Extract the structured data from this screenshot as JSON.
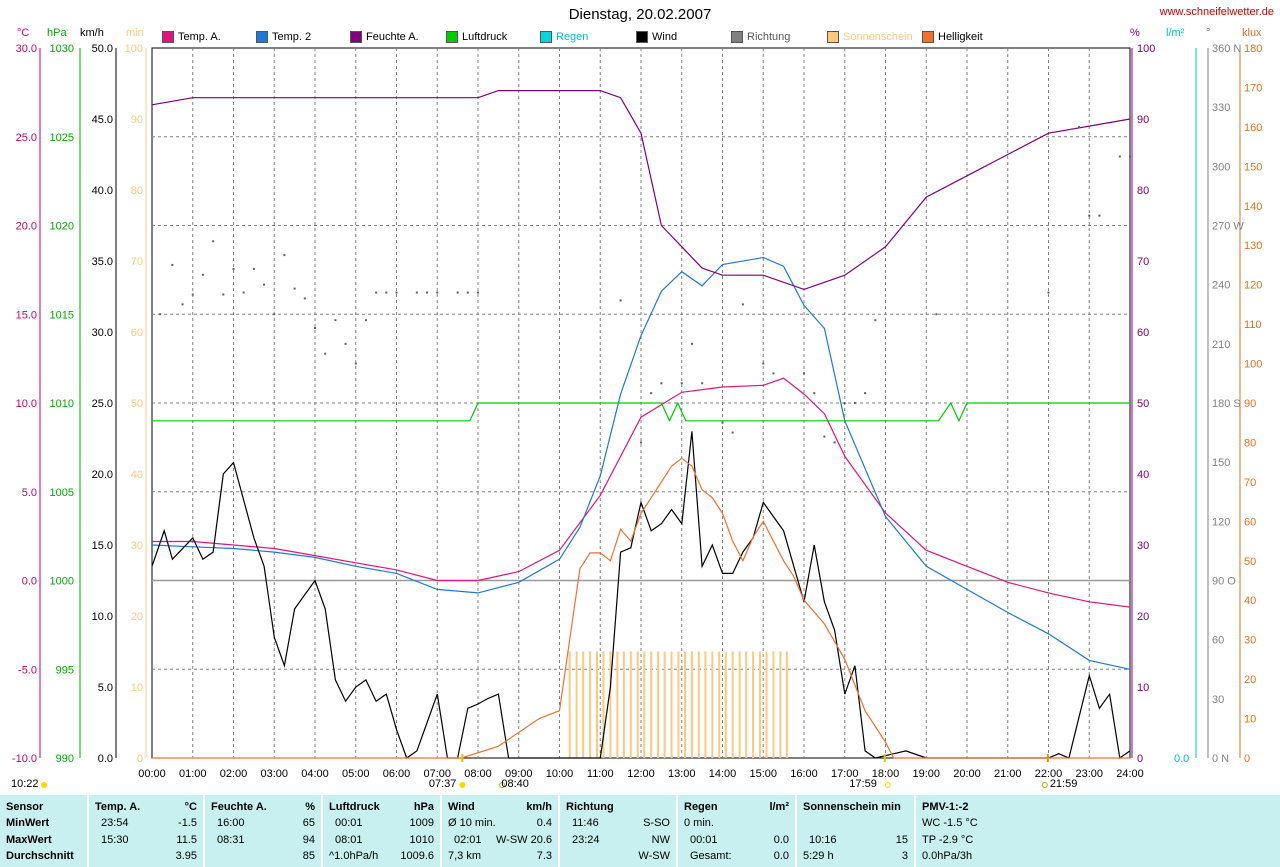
{
  "title": "Dienstag, 20.02.2007",
  "site": "www.schneifelwetter.de",
  "units": {
    "temp": "°C",
    "pressure": "hPa",
    "wind": "km/h",
    "sun": "min",
    "humidity": "%",
    "rain": "l/m²",
    "direction": "°",
    "light": "klux"
  },
  "legend": [
    {
      "name": "Temp. A.",
      "color": "#e0147c"
    },
    {
      "name": "Temp. 2",
      "color": "#1e78dc"
    },
    {
      "name": "Feuchte A.",
      "color": "#800080"
    },
    {
      "name": "Luftdruck",
      "color": "#00cc00"
    },
    {
      "name": "Regen",
      "color": "#00d8e0"
    },
    {
      "name": "Wind",
      "color": "#000000"
    },
    {
      "name": "Richtung",
      "color": "#808080"
    },
    {
      "name": "Sonnenschein",
      "color": "#ffc880"
    },
    {
      "name": "Helligkeit",
      "color": "#f07030"
    }
  ],
  "colors": {
    "temp_axis": "#cc0066",
    "pressure_axis": "#00aa00",
    "sun_axis": "#ffc880",
    "humidity_axis": "#800080",
    "rain_axis": "#00c0d0",
    "light_axis": "#e07020",
    "grid": "#808080",
    "stats_bg": "#c8f0f0"
  },
  "events": {
    "sunrise": "07:37",
    "sunset": "17:59",
    "moonrise": "08:40",
    "moonset": "21:59",
    "marker_left": "10:22"
  },
  "axes": {
    "x_ticks": [
      "00:00",
      "01:00",
      "02:00",
      "03:00",
      "04:00",
      "05:00",
      "06:00",
      "07:00",
      "08:00",
      "09:00",
      "10:00",
      "11:00",
      "12:00",
      "13:00",
      "14:00",
      "15:00",
      "16:00",
      "17:00",
      "18:00",
      "19:00",
      "20:00",
      "21:00",
      "22:00",
      "23:00",
      "24:00"
    ],
    "temp_ticks": [
      "30.0",
      "25.0",
      "20.0",
      "15.0",
      "10.0",
      "5.0",
      "0.0",
      "-5.0",
      "-10.0"
    ],
    "pressure_ticks": [
      "1030",
      "1025",
      "1020",
      "1015",
      "1010",
      "1005",
      "1000",
      "995",
      "990"
    ],
    "wind_ticks": [
      "50.0",
      "45.0",
      "40.0",
      "35.0",
      "30.0",
      "25.0",
      "20.0",
      "15.0",
      "10.0",
      "5.0",
      "0.0"
    ],
    "sun_ticks": [
      "100",
      "90",
      "80",
      "70",
      "60",
      "50",
      "40",
      "30",
      "20",
      "10",
      "0"
    ],
    "humidity_ticks": [
      "100",
      "90",
      "80",
      "70",
      "60",
      "50",
      "40",
      "30",
      "20",
      "10",
      "0"
    ],
    "rain_ticks": [
      "0.0"
    ],
    "direction_ticks": [
      "360 N",
      "330",
      "300",
      "270 W",
      "240",
      "210",
      "180 S",
      "150",
      "120",
      "90 O",
      "60",
      "30",
      "0 N"
    ],
    "light_ticks": [
      "180",
      "170",
      "160",
      "150",
      "140",
      "130",
      "120",
      "110",
      "100",
      "90",
      "80",
      "70",
      "60",
      "50",
      "40",
      "30",
      "20",
      "10",
      "0"
    ]
  },
  "chart_data": {
    "type": "line",
    "title": "Dienstag, 20.02.2007",
    "x_range_hours": [
      0,
      24
    ],
    "series": [
      {
        "name": "Temp. A.",
        "axis": "temp °C",
        "points": [
          [
            0,
            2.2
          ],
          [
            1,
            2.2
          ],
          [
            2,
            2.0
          ],
          [
            3,
            1.8
          ],
          [
            4,
            1.4
          ],
          [
            5,
            1.0
          ],
          [
            6,
            0.6
          ],
          [
            7,
            0.0
          ],
          [
            8,
            0.0
          ],
          [
            9,
            0.5
          ],
          [
            10,
            1.7
          ],
          [
            11,
            4.8
          ],
          [
            12,
            9.2
          ],
          [
            13,
            10.6
          ],
          [
            14,
            10.9
          ],
          [
            15,
            11.0
          ],
          [
            15.5,
            11.4
          ],
          [
            16,
            10.5
          ],
          [
            16.5,
            9.4
          ],
          [
            17,
            7.0
          ],
          [
            18,
            3.8
          ],
          [
            19,
            1.7
          ],
          [
            20,
            0.8
          ],
          [
            21,
            -0.1
          ],
          [
            22,
            -0.7
          ],
          [
            23,
            -1.2
          ],
          [
            24,
            -1.5
          ]
        ]
      },
      {
        "name": "Temp. 2",
        "axis": "temp °C",
        "points": [
          [
            0,
            2.0
          ],
          [
            1,
            1.9
          ],
          [
            2,
            1.8
          ],
          [
            3,
            1.6
          ],
          [
            4,
            1.3
          ],
          [
            5,
            0.8
          ],
          [
            6,
            0.4
          ],
          [
            7,
            -0.5
          ],
          [
            8,
            -0.7
          ],
          [
            9,
            -0.1
          ],
          [
            10,
            1.2
          ],
          [
            10.5,
            3.0
          ],
          [
            11,
            5.9
          ],
          [
            11.5,
            10.5
          ],
          [
            12,
            13.8
          ],
          [
            12.5,
            16.3
          ],
          [
            13,
            17.4
          ],
          [
            13.5,
            16.6
          ],
          [
            14,
            17.8
          ],
          [
            15,
            18.2
          ],
          [
            15.5,
            17.7
          ],
          [
            16,
            15.5
          ],
          [
            16.5,
            14.2
          ],
          [
            17,
            9.0
          ],
          [
            18,
            3.6
          ],
          [
            19,
            0.8
          ],
          [
            20,
            -0.5
          ],
          [
            21,
            -1.8
          ],
          [
            22,
            -3.0
          ],
          [
            23,
            -4.5
          ],
          [
            24,
            -5.0
          ]
        ]
      },
      {
        "name": "Feuchte A.",
        "axis": "humidity %",
        "points": [
          [
            0,
            92
          ],
          [
            1,
            93
          ],
          [
            8,
            93
          ],
          [
            8.5,
            94
          ],
          [
            11,
            94
          ],
          [
            11.5,
            93
          ],
          [
            12,
            88
          ],
          [
            12.5,
            75
          ],
          [
            13,
            72
          ],
          [
            13.5,
            69
          ],
          [
            14,
            68
          ],
          [
            15,
            68
          ],
          [
            16,
            66
          ],
          [
            16.5,
            67
          ],
          [
            17,
            68
          ],
          [
            18,
            72
          ],
          [
            19,
            79
          ],
          [
            20,
            82
          ],
          [
            21,
            85
          ],
          [
            22,
            88
          ],
          [
            23,
            89
          ],
          [
            24,
            90
          ]
        ]
      },
      {
        "name": "Luftdruck",
        "axis": "pressure hPa",
        "points": [
          [
            0,
            1009
          ],
          [
            7.8,
            1009
          ],
          [
            8.0,
            1010
          ],
          [
            12.5,
            1010
          ],
          [
            12.7,
            1009
          ],
          [
            12.9,
            1010
          ],
          [
            13.1,
            1009
          ],
          [
            19.3,
            1009
          ],
          [
            19.6,
            1010
          ],
          [
            19.8,
            1009
          ],
          [
            20.0,
            1010
          ],
          [
            24,
            1010
          ]
        ]
      },
      {
        "name": "Wind",
        "axis": "wind km/h",
        "points": [
          [
            0,
            13.5
          ],
          [
            0.3,
            16.0
          ],
          [
            0.5,
            14.0
          ],
          [
            1,
            15.5
          ],
          [
            1.25,
            14.0
          ],
          [
            1.5,
            14.5
          ],
          [
            1.75,
            20.0
          ],
          [
            2,
            20.8
          ],
          [
            2.5,
            15.5
          ],
          [
            2.75,
            13.5
          ],
          [
            3,
            8.5
          ],
          [
            3.25,
            6.5
          ],
          [
            3.5,
            10.5
          ],
          [
            4,
            12.5
          ],
          [
            4.25,
            10.5
          ],
          [
            4.5,
            5.5
          ],
          [
            4.75,
            4.0
          ],
          [
            5,
            5.0
          ],
          [
            5.25,
            5.5
          ],
          [
            5.5,
            4.0
          ],
          [
            5.75,
            4.5
          ],
          [
            6,
            2.0
          ],
          [
            6.25,
            0
          ],
          [
            6.5,
            0.5
          ],
          [
            6.75,
            2.5
          ],
          [
            7,
            4.5
          ],
          [
            7.25,
            0
          ],
          [
            7.5,
            0
          ],
          [
            7.75,
            3.5
          ],
          [
            8,
            3.8
          ],
          [
            8.25,
            4.2
          ],
          [
            8.5,
            4.5
          ],
          [
            8.75,
            0
          ],
          [
            9,
            0
          ],
          [
            10,
            0
          ],
          [
            11,
            0
          ],
          [
            11.25,
            5.0
          ],
          [
            11.5,
            14.5
          ],
          [
            11.75,
            14.8
          ],
          [
            12,
            18.0
          ],
          [
            12.25,
            16.0
          ],
          [
            12.5,
            16.5
          ],
          [
            12.75,
            17.5
          ],
          [
            13,
            16.5
          ],
          [
            13.25,
            23.0
          ],
          [
            13.5,
            13.5
          ],
          [
            13.75,
            15.0
          ],
          [
            14,
            13.0
          ],
          [
            14.25,
            13.0
          ],
          [
            14.5,
            14.5
          ],
          [
            14.75,
            15.5
          ],
          [
            15,
            18.0
          ],
          [
            15.25,
            17.0
          ],
          [
            15.5,
            16.0
          ],
          [
            15.75,
            13.5
          ],
          [
            16,
            11.0
          ],
          [
            16.25,
            15.0
          ],
          [
            16.5,
            11.0
          ],
          [
            16.75,
            9.0
          ],
          [
            17,
            4.5
          ],
          [
            17.25,
            6.5
          ],
          [
            17.5,
            0.5
          ],
          [
            17.75,
            0
          ],
          [
            18.5,
            0.5
          ],
          [
            19,
            0
          ],
          [
            22,
            0
          ],
          [
            22.25,
            0.3
          ],
          [
            22.5,
            0
          ],
          [
            23,
            5.8
          ],
          [
            23.25,
            3.5
          ],
          [
            23.5,
            4.5
          ],
          [
            23.75,
            0
          ],
          [
            24,
            0.5
          ]
        ]
      },
      {
        "name": "Helligkeit",
        "axis": "light klux",
        "points": [
          [
            0,
            0
          ],
          [
            7.6,
            0
          ],
          [
            8.5,
            3
          ],
          [
            9.5,
            10
          ],
          [
            10,
            12
          ],
          [
            10.25,
            30
          ],
          [
            10.5,
            48
          ],
          [
            10.75,
            52
          ],
          [
            11,
            52
          ],
          [
            11.25,
            50
          ],
          [
            11.5,
            58
          ],
          [
            11.75,
            55
          ],
          [
            12,
            62
          ],
          [
            12.25,
            66
          ],
          [
            12.5,
            70
          ],
          [
            12.75,
            74
          ],
          [
            13,
            76
          ],
          [
            13.25,
            74
          ],
          [
            13.5,
            68
          ],
          [
            13.75,
            66
          ],
          [
            14,
            62
          ],
          [
            14.25,
            55
          ],
          [
            14.5,
            50
          ],
          [
            14.75,
            56
          ],
          [
            15,
            60
          ],
          [
            15.25,
            55
          ],
          [
            15.5,
            50
          ],
          [
            15.75,
            46
          ],
          [
            16,
            40
          ],
          [
            16.5,
            34
          ],
          [
            17,
            25
          ],
          [
            17.5,
            12
          ],
          [
            18,
            4
          ],
          [
            18.2,
            0
          ],
          [
            24,
            0
          ]
        ]
      }
    ],
    "richtung_dots": [
      [
        0.2,
        225
      ],
      [
        0.5,
        250
      ],
      [
        0.75,
        230
      ],
      [
        1,
        235
      ],
      [
        1.25,
        245
      ],
      [
        1.5,
        262
      ],
      [
        1.75,
        235
      ],
      [
        2,
        248
      ],
      [
        2.25,
        236
      ],
      [
        2.5,
        248
      ],
      [
        2.75,
        240
      ],
      [
        3,
        225
      ],
      [
        3.25,
        255
      ],
      [
        3.5,
        238
      ],
      [
        3.75,
        233
      ],
      [
        4,
        218
      ],
      [
        4.25,
        205
      ],
      [
        4.5,
        222
      ],
      [
        4.75,
        210
      ],
      [
        5,
        200
      ],
      [
        5.25,
        222
      ],
      [
        5.5,
        236
      ],
      [
        5.75,
        236
      ],
      [
        6,
        236
      ],
      [
        6.5,
        236
      ],
      [
        6.75,
        236
      ],
      [
        7,
        236
      ],
      [
        7.5,
        236
      ],
      [
        7.75,
        236
      ],
      [
        8,
        236
      ],
      [
        11.5,
        232
      ],
      [
        12,
        160
      ],
      [
        12.25,
        185
      ],
      [
        12.5,
        190
      ],
      [
        13,
        190
      ],
      [
        13.25,
        210
      ],
      [
        13.5,
        190
      ],
      [
        14,
        170
      ],
      [
        14.25,
        165
      ],
      [
        14.5,
        230
      ],
      [
        15,
        200
      ],
      [
        15.25,
        195
      ],
      [
        16,
        195
      ],
      [
        16.25,
        185
      ],
      [
        16.5,
        163
      ],
      [
        16.75,
        160
      ],
      [
        17,
        180
      ],
      [
        17.25,
        180
      ],
      [
        17.5,
        185
      ],
      [
        17.75,
        222
      ],
      [
        19.25,
        225
      ],
      [
        22,
        236
      ],
      [
        22.75,
        320
      ],
      [
        23,
        275
      ],
      [
        23.25,
        275
      ],
      [
        23.75,
        305
      ],
      [
        24,
        305
      ]
    ],
    "sonnenschein_bars_hours": [
      10.25,
      10.42,
      10.58,
      10.75,
      10.92,
      11.08,
      11.25,
      11.42,
      11.58,
      11.75,
      11.92,
      12.08,
      12.25,
      12.42,
      12.58,
      12.75,
      12.92,
      13.08,
      13.25,
      13.42,
      13.58,
      13.75,
      13.92,
      14.08,
      14.25,
      14.42,
      14.58,
      14.75,
      14.92,
      15.08,
      15.25,
      15.42,
      15.58
    ],
    "sonnenschein_value_min": 15
  },
  "stats": {
    "headers": {
      "sensor": "Sensor",
      "minwert": "MinWert",
      "maxwert": "MaxWert",
      "durchschnitt": "Durchschnitt"
    },
    "temp": {
      "title": "Temp. A.",
      "unit": "°C",
      "min_time": "23:54",
      "min": "-1.5",
      "max_time": "15:30",
      "max": "11.5",
      "avg": "3.95"
    },
    "feuchte": {
      "title": "Feuchte A.",
      "unit": "%",
      "min_time": "16:00",
      "min": "65",
      "max_time": "08:31",
      "max": "94",
      "avg": "85"
    },
    "luftdruck": {
      "title": "Luftdruck",
      "unit": "hPa",
      "min_time": "00:01",
      "min": "1009",
      "max_time": "08:01",
      "max": "1010",
      "avg_label": "^1.0hPa/h",
      "avg": "1009.6"
    },
    "wind": {
      "title": "Wind",
      "unit": "km/h",
      "r1_label": "Ø 10 min.",
      "r1": "0.4",
      "r2_time": "02:01",
      "r2_label": "W-SW 20.6",
      "r3_label": "7,3 km",
      "r3": "7.3"
    },
    "richtung": {
      "title": "Richtung",
      "r1_time": "11:46",
      "r1": "S-SO",
      "r2_time": "23:24",
      "r2": "NW",
      "r3": "W-SW"
    },
    "regen": {
      "title": "Regen",
      "unit": "l/m²",
      "r1_label": "0 min.",
      "r2_time": "00:01",
      "r2": "0.0",
      "r3_label": "Gesamt:",
      "r3": "0.0"
    },
    "sonne": {
      "title": "Sonnenschein min",
      "r2_time": "10:16",
      "r2": "15",
      "r3_label": "5:29 h",
      "r3": "3"
    },
    "pmv": {
      "title": "PMV-1:-2",
      "r1": "WC -1.5 °C",
      "r2": "TP -2.9 °C",
      "r3": "0.0hPa/3h"
    }
  }
}
